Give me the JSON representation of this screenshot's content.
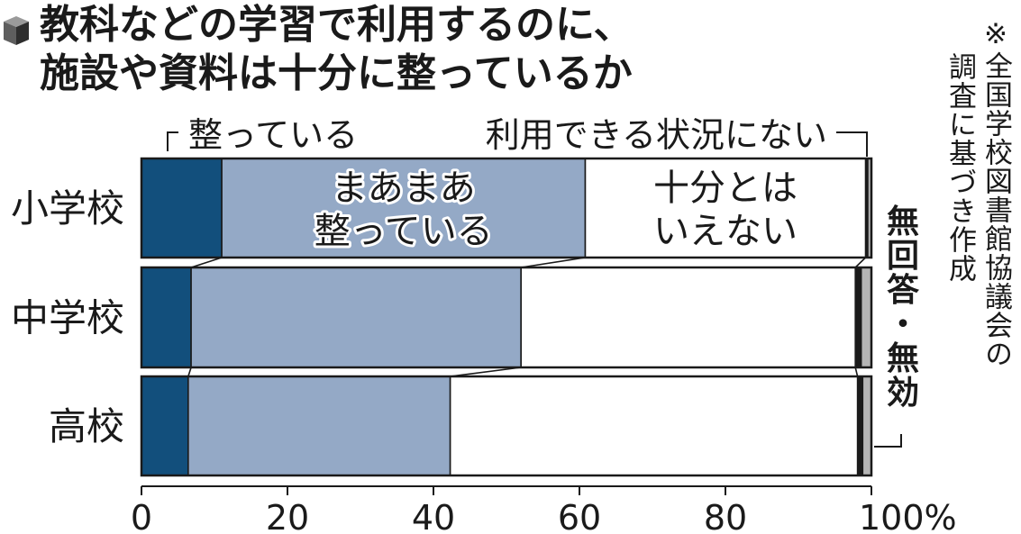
{
  "title": {
    "line1": "教科などの学習で利用するのに、",
    "line2": "施設や資料は十分に整っているか"
  },
  "note": {
    "col1": "※全国学校図書館協議会の",
    "col2": "調査に基づき作成"
  },
  "colors": {
    "dark": "#124f7c",
    "light": "#94a9c6",
    "white": "#ffffff",
    "gray": "#b5b5b5",
    "ink": "#1a1a1a"
  },
  "chart_data": {
    "type": "bar",
    "orientation": "horizontal",
    "stacked": true,
    "categories": [
      "小学校",
      "中学校",
      "高校"
    ],
    "series": [
      {
        "name": "整っている",
        "values": [
          11.0,
          6.8,
          6.4
        ]
      },
      {
        "name": "まあまあ整っている",
        "values": [
          49.8,
          45.2,
          35.9
        ]
      },
      {
        "name": "十分とはいえない",
        "values": [
          38.4,
          45.8,
          55.8
        ]
      },
      {
        "name": "利用できる状況にない",
        "values": [
          0.3,
          0.8,
          0.7
        ]
      },
      {
        "name": "無回答・無効",
        "values": [
          0.5,
          1.4,
          1.2
        ]
      }
    ],
    "in_bar_labels": {
      "light": [
        "まあまあ",
        "整っている"
      ],
      "white": [
        "十分とは",
        "いえない"
      ]
    },
    "xlim": [
      0,
      100
    ],
    "xticks": [
      "0",
      "20",
      "40",
      "60",
      "80",
      "100%"
    ],
    "grid": false,
    "legend": "direct labels above and right of bars"
  }
}
